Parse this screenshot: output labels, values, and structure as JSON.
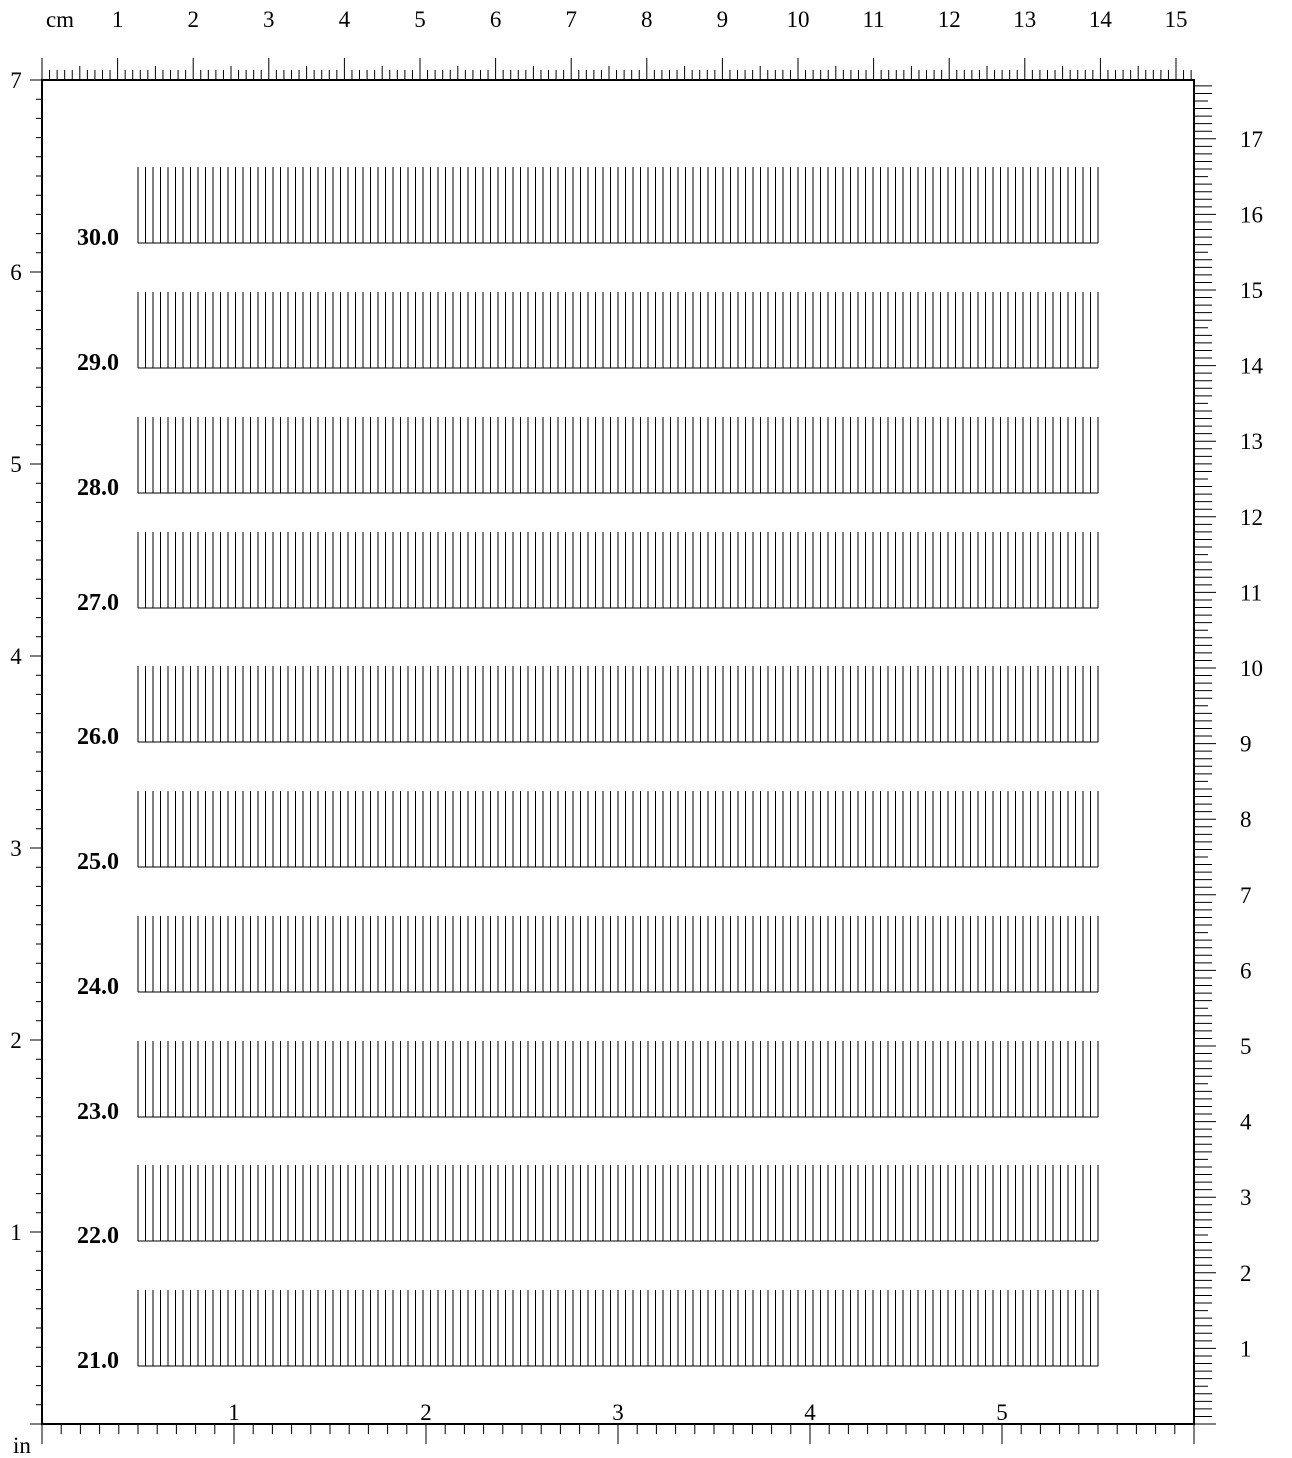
{
  "top_ruler": {
    "unit": "cm",
    "labels": [
      "1",
      "2",
      "3",
      "4",
      "5",
      "6",
      "7",
      "8",
      "9",
      "10",
      "11",
      "12",
      "13",
      "14",
      "15"
    ]
  },
  "left_ruler": {
    "labels": [
      "1",
      "2",
      "3",
      "4",
      "5",
      "6",
      "7"
    ]
  },
  "bottom_ruler": {
    "unit": "in",
    "labels": [
      "1",
      "2",
      "3",
      "4",
      "5"
    ]
  },
  "right_ruler": {
    "labels": [
      "1",
      "2",
      "3",
      "4",
      "5",
      "6",
      "7",
      "8",
      "9",
      "10",
      "11",
      "12",
      "13",
      "14",
      "15",
      "16",
      "17"
    ]
  },
  "patterns": {
    "labels": [
      "30.0",
      "29.0",
      "28.0",
      "27.0",
      "26.0",
      "25.0",
      "24.0",
      "23.0",
      "22.0",
      "21.0"
    ]
  }
}
